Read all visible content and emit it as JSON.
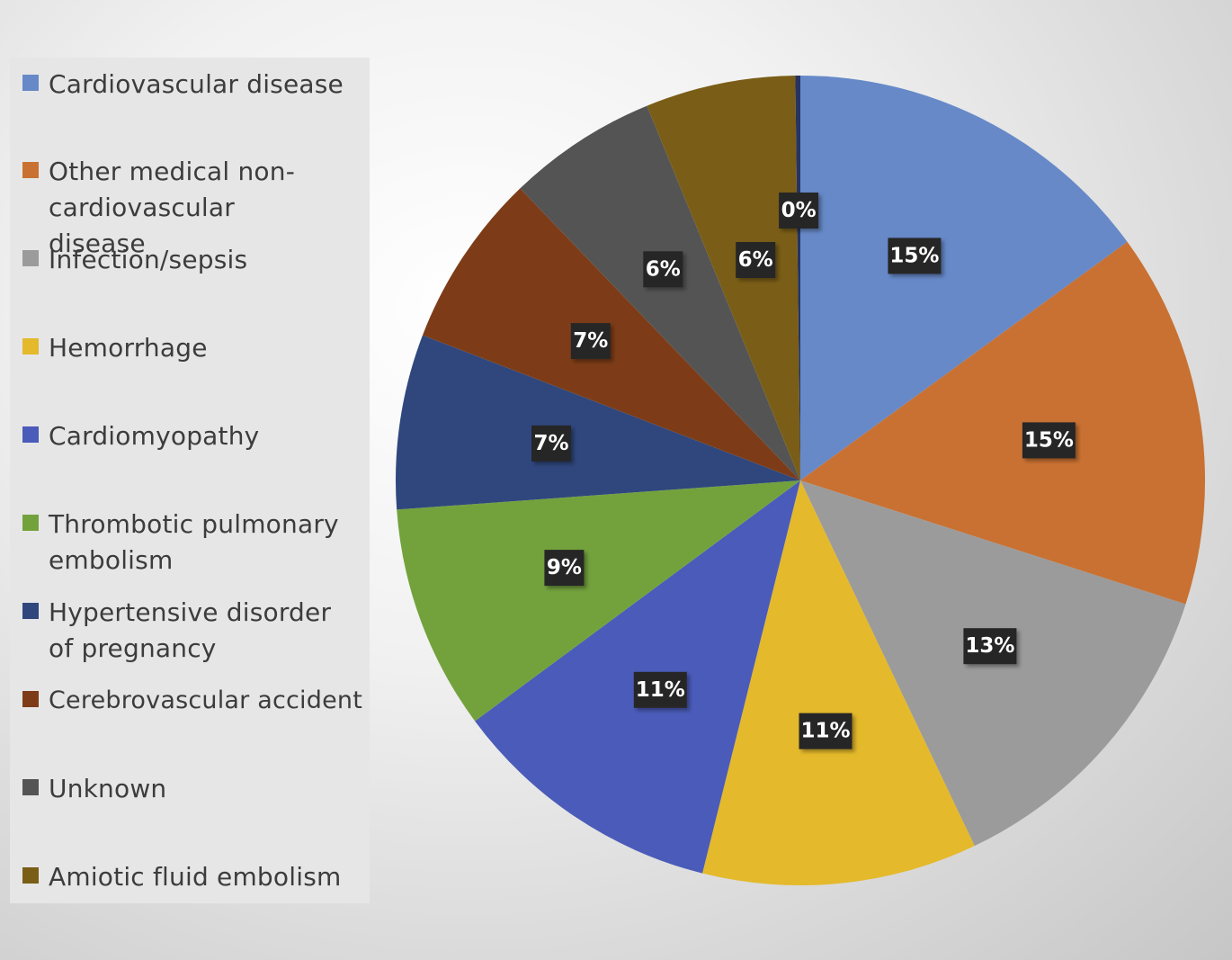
{
  "chart_data": {
    "type": "pie",
    "title": "",
    "legend_position": "left",
    "start": "top, clockwise",
    "slices": [
      {
        "label": "Cardiovascular disease",
        "value": 15,
        "display": "15%",
        "color": "#6789C8"
      },
      {
        "label": "Other medical non-cardiovascular disease",
        "value": 15,
        "display": "15%",
        "color": "#C97132"
      },
      {
        "label": "Infection/sepsis",
        "value": 13,
        "display": "13%",
        "color": "#9B9B9B"
      },
      {
        "label": "Hemorrhage",
        "value": 11,
        "display": "11%",
        "color": "#E4B92B"
      },
      {
        "label": "Cardiomyopathy",
        "value": 11,
        "display": "11%",
        "color": "#4A5BB9"
      },
      {
        "label": "Thrombotic pulmonary embolism",
        "value": 9,
        "display": "9%",
        "color": "#73A23D"
      },
      {
        "label": "Hypertensive disorder of pregnancy",
        "value": 7,
        "display": "7%",
        "color": "#2F477D"
      },
      {
        "label": "Cerebrovascular accident",
        "value": 7,
        "display": "7%",
        "color": "#7D3C17"
      },
      {
        "label": "Unknown",
        "value": 6,
        "display": "6%",
        "color": "#545454"
      },
      {
        "label": "Amiotic fluid embolism",
        "value": 6,
        "display": "6%",
        "color": "#7A5E17"
      },
      {
        "label": "",
        "value": 0.2,
        "display": "0%",
        "color": "#26345F"
      }
    ]
  },
  "legend": {
    "items": [
      {
        "label": "Cardiovascular disease",
        "color": "#6789C8"
      },
      {
        "label": "Other medical non-cardiovascular disease",
        "color": "#C97132"
      },
      {
        "label": "Infection/sepsis",
        "color": "#9B9B9B"
      },
      {
        "label": "Hemorrhage",
        "color": "#E4B92B"
      },
      {
        "label": "Cardiomyopathy",
        "color": "#4A5BB9"
      },
      {
        "label": "Thrombotic pulmonary embolism",
        "color": "#73A23D"
      },
      {
        "label": "Hypertensive disorder of pregnancy",
        "color": "#2F477D"
      },
      {
        "label": "Cerebrovascular accident",
        "color": "#7D3C17"
      },
      {
        "label": "Unknown",
        "color": "#545454"
      },
      {
        "label": "Amiotic fluid embolism",
        "color": "#7A5E17"
      }
    ]
  }
}
